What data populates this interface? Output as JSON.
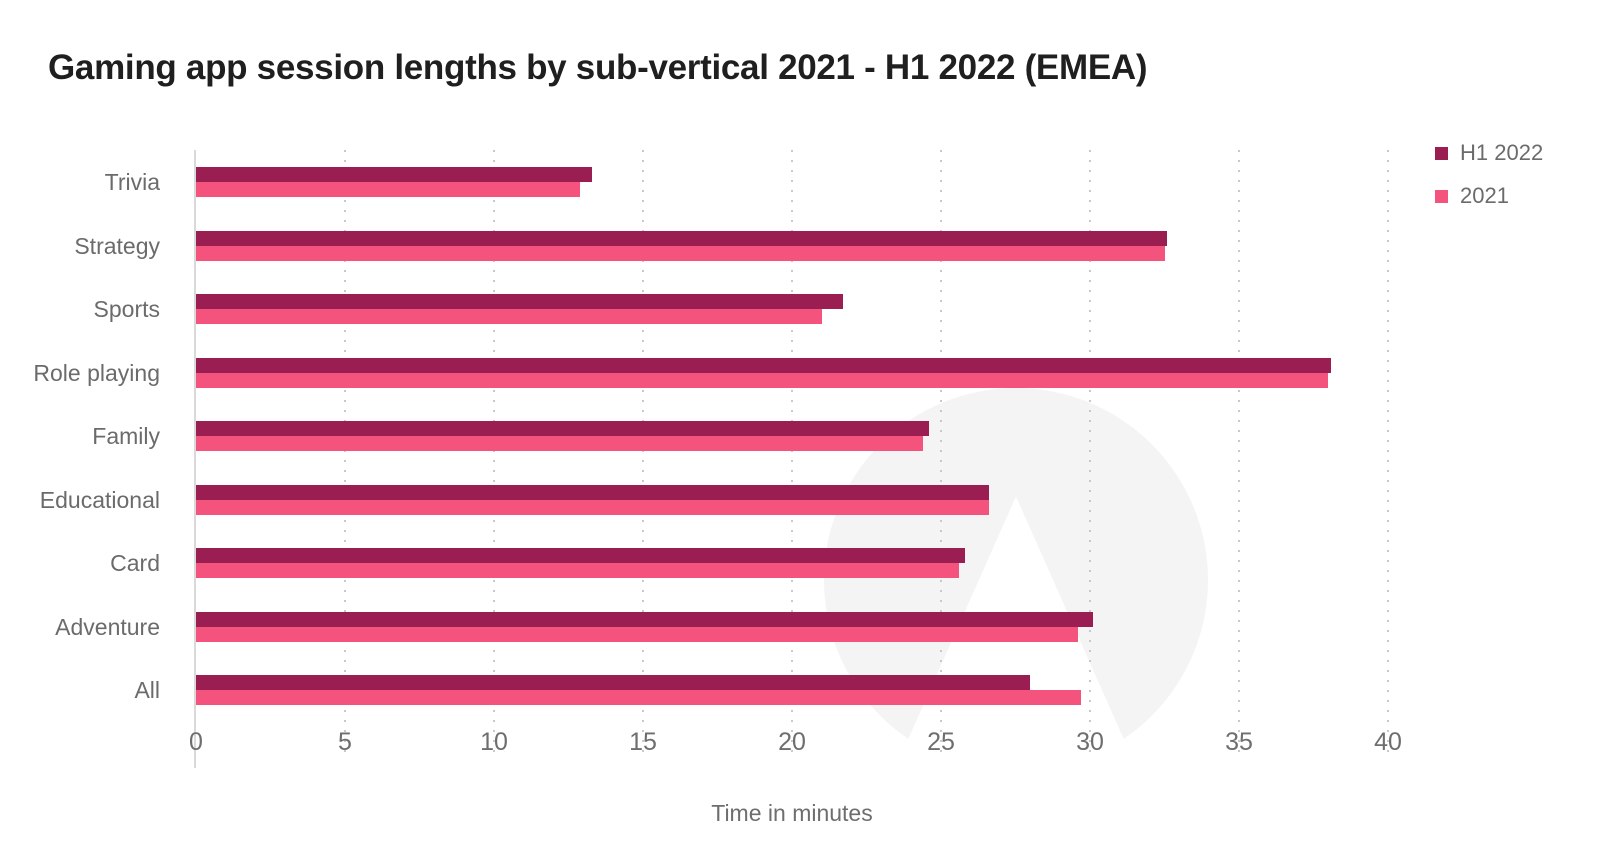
{
  "title": "Gaming app session lengths by sub-vertical 2021 - H1 2022 (EMEA)",
  "colors": {
    "h1_2022": "#9B1E52",
    "y2021": "#F4537D",
    "axis": "#d9d9d9",
    "grid": "#c9c9c9",
    "text_muted": "#6b6b6b",
    "title_text": "#1f1f1f"
  },
  "legend": {
    "items": [
      {
        "label": "H1 2022",
        "color": "#9B1E52"
      },
      {
        "label": "2021",
        "color": "#F4537D"
      }
    ]
  },
  "chart_data": {
    "type": "bar",
    "orientation": "horizontal",
    "title": "Gaming app session lengths by sub-vertical 2021 - H1 2022 (EMEA)",
    "categories": [
      "Trivia",
      "Strategy",
      "Sports",
      "Role playing",
      "Family",
      "Educational",
      "Card",
      "Adventure",
      "All"
    ],
    "series": [
      {
        "name": "H1 2022",
        "color": "#9B1E52",
        "values": [
          13.3,
          32.6,
          21.7,
          38.1,
          24.6,
          26.6,
          25.8,
          30.1,
          28.0
        ]
      },
      {
        "name": "2021",
        "color": "#F4537D",
        "values": [
          12.9,
          32.5,
          21.0,
          38.0,
          24.4,
          26.6,
          25.6,
          29.6,
          29.7
        ]
      }
    ],
    "xlabel": "Time in minutes",
    "ylabel": "",
    "xticks": [
      0,
      5,
      10,
      15,
      20,
      25,
      30,
      35,
      40
    ],
    "xlim": [
      0,
      41.3
    ],
    "grid": "dotted-vertical",
    "legend_position": "top-right",
    "watermark": "adjust-logo"
  }
}
